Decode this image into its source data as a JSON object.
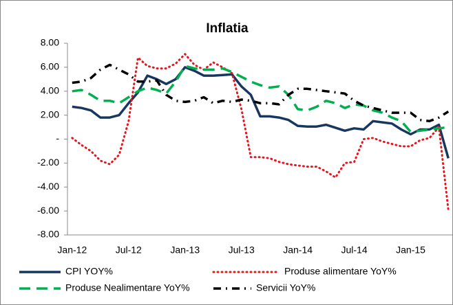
{
  "chart_data": {
    "type": "line",
    "title": "Inflatia",
    "categories": [
      "Jan-12",
      null,
      null,
      null,
      null,
      null,
      "Jul-12",
      null,
      null,
      null,
      null,
      null,
      "Jan-13",
      null,
      null,
      null,
      null,
      null,
      "Jul-13",
      null,
      null,
      null,
      null,
      null,
      "Jan-14",
      null,
      null,
      null,
      null,
      null,
      "Jul-14",
      null,
      null,
      null,
      null,
      null,
      "Jan-15",
      null,
      null,
      null,
      null
    ],
    "series": [
      {
        "name": "CPI YOY%",
        "color": "#17375e",
        "dash": "solid",
        "values": [
          2.7,
          2.6,
          2.4,
          1.8,
          1.8,
          2.0,
          3.0,
          3.9,
          5.3,
          5.0,
          4.6,
          5.0,
          6.0,
          5.7,
          5.3,
          5.3,
          5.35,
          5.4,
          4.4,
          3.7,
          1.9,
          1.9,
          1.8,
          1.6,
          1.1,
          1.05,
          1.05,
          1.2,
          0.95,
          0.7,
          0.9,
          0.8,
          1.5,
          1.4,
          1.3,
          0.8,
          0.4,
          0.8,
          0.8,
          1.2,
          -1.6
        ]
      },
      {
        "name": "Produse alimentare YoY%",
        "color": "#e8141b",
        "dash": "dotted",
        "values": [
          0.1,
          -0.5,
          -1.0,
          -1.8,
          -2.1,
          -1.3,
          1.5,
          6.8,
          6.1,
          5.9,
          5.9,
          6.3,
          7.1,
          6.2,
          5.8,
          6.4,
          6.0,
          5.5,
          2.5,
          -1.5,
          -1.5,
          -1.6,
          -1.9,
          -2.1,
          -2.2,
          -2.3,
          -2.3,
          -2.7,
          -3.2,
          -2.0,
          -1.9,
          0.0,
          0.1,
          -0.2,
          -0.4,
          -0.6,
          -0.6,
          -0.1,
          0.1,
          1.0,
          -5.9
        ]
      },
      {
        "name": "Produse Nealimentare YoY%",
        "color": "#00b050",
        "dash": "dashed",
        "values": [
          4.0,
          4.1,
          3.7,
          3.2,
          3.2,
          3.0,
          3.5,
          4.0,
          4.3,
          4.1,
          3.8,
          4.8,
          6.1,
          5.9,
          5.8,
          5.8,
          5.9,
          5.6,
          5.2,
          4.8,
          4.5,
          4.3,
          4.4,
          3.7,
          2.5,
          2.4,
          2.7,
          3.2,
          3.0,
          2.6,
          2.9,
          2.8,
          2.4,
          2.2,
          1.8,
          1.5,
          0.6,
          0.7,
          0.8,
          0.9,
          1.0
        ]
      },
      {
        "name": "Servicii YoY%",
        "color": "#000000",
        "dash": "dashdot",
        "values": [
          4.7,
          4.8,
          5.1,
          5.8,
          6.2,
          5.8,
          5.4,
          4.8,
          4.8,
          4.9,
          3.7,
          3.2,
          3.1,
          3.2,
          3.5,
          3.0,
          3.2,
          3.1,
          3.3,
          3.2,
          3.0,
          3.0,
          2.9,
          3.7,
          4.2,
          4.2,
          4.1,
          4.0,
          3.9,
          3.8,
          3.2,
          2.8,
          2.6,
          2.4,
          2.2,
          2.2,
          2.2,
          1.6,
          1.5,
          1.8,
          2.3
        ]
      }
    ],
    "ylim": [
      -8,
      8
    ],
    "yticks": [
      {
        "value": -8,
        "label": "-8.00"
      },
      {
        "value": -6,
        "label": "-6.00"
      },
      {
        "value": -4,
        "label": "-4.00"
      },
      {
        "value": -2,
        "label": "-2.00"
      },
      {
        "value": 0,
        "label": "-"
      },
      {
        "value": 2,
        "label": "2.00"
      },
      {
        "value": 4,
        "label": "4.00"
      },
      {
        "value": 6,
        "label": "6.00"
      },
      {
        "value": 8,
        "label": "8.00"
      }
    ],
    "grid": false,
    "legend": "bottom"
  }
}
